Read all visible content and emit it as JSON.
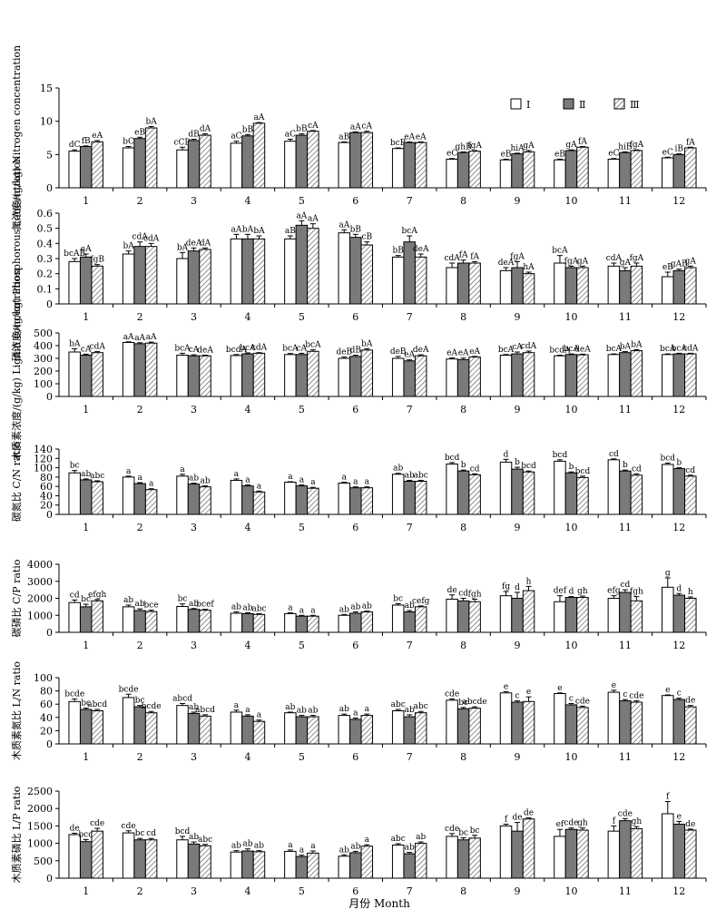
{
  "legend": [
    "Ⅰ",
    "Ⅱ",
    "Ⅲ"
  ],
  "x_label": "月份  Month",
  "categories": [
    "1",
    "2",
    "3",
    "4",
    "5",
    "6",
    "7",
    "8",
    "9",
    "10",
    "11",
    "12"
  ],
  "chart_data": [
    {
      "type": "bar",
      "ylabel": "氮浓度/(g/kg) Nitrogen concentration",
      "ylim": [
        0,
        15
      ],
      "yticks": [
        0,
        5,
        10,
        15
      ],
      "series": [
        {
          "name": "Ⅰ",
          "values": [
            5.5,
            6.0,
            5.7,
            6.7,
            7.0,
            6.8,
            5.9,
            4.3,
            4.2,
            4.2,
            4.3,
            4.5
          ],
          "errors": [
            0.2,
            0.2,
            0.4,
            0.3,
            0.3,
            0.1,
            0.1,
            0.1,
            0.1,
            0.1,
            0.1,
            0.1
          ],
          "labels": [
            "dC",
            "bC",
            "cCD",
            "aC",
            "aC",
            "aB",
            "bcB",
            "eC",
            "eB",
            "eB",
            "eC",
            "eC"
          ]
        },
        {
          "name": "Ⅱ",
          "values": [
            6.2,
            7.4,
            7.1,
            7.8,
            7.9,
            8.3,
            6.8,
            5.3,
            5.1,
            5.6,
            5.3,
            5.0
          ],
          "errors": [
            0.1,
            0.2,
            0.2,
            0.2,
            0.2,
            0.1,
            0.1,
            0.1,
            0.1,
            0.1,
            0.1,
            0.1
          ],
          "labels": [
            "fB",
            "eB",
            "dB",
            "bB",
            "bB",
            "aA",
            "eA",
            "ghB",
            "hiA",
            "gA",
            "hiB",
            "iB"
          ]
        },
        {
          "name": "Ⅲ",
          "values": [
            6.9,
            9.0,
            7.9,
            9.7,
            8.5,
            8.3,
            6.8,
            5.5,
            5.4,
            6.1,
            5.6,
            6.0
          ],
          "errors": [
            0.2,
            0.2,
            0.2,
            0.1,
            0.1,
            0.2,
            0.1,
            0.1,
            0.2,
            0.1,
            0.1,
            0.1
          ],
          "labels": [
            "eA",
            "bA",
            "dA",
            "aA",
            "cA",
            "cA",
            "eA",
            "fgA",
            "gA",
            "fA",
            "fgA",
            "fA"
          ]
        }
      ]
    },
    {
      "type": "bar",
      "ylabel": "磷浓度/(g/kg) Phosphorous concentration",
      "ylim": [
        0,
        0.6
      ],
      "yticks": [
        0,
        0.1,
        0.2,
        0.3,
        0.4,
        0.5,
        0.6
      ],
      "series": [
        {
          "name": "Ⅰ",
          "values": [
            0.28,
            0.33,
            0.3,
            0.43,
            0.43,
            0.47,
            0.31,
            0.24,
            0.22,
            0.27,
            0.25,
            0.18
          ],
          "errors": [
            0.02,
            0.02,
            0.04,
            0.03,
            0.02,
            0.02,
            0.01,
            0.03,
            0.02,
            0.05,
            0.02,
            0.03
          ],
          "labels": [
            "bcAB",
            "bA",
            "bA",
            "aA",
            "aB",
            "aA",
            "bB",
            "cdA",
            "deA",
            "bcA",
            "cdA",
            "eB"
          ]
        },
        {
          "name": "Ⅱ",
          "values": [
            0.31,
            0.38,
            0.35,
            0.43,
            0.52,
            0.44,
            0.41,
            0.27,
            0.24,
            0.24,
            0.22,
            0.22
          ],
          "errors": [
            0.02,
            0.03,
            0.02,
            0.03,
            0.03,
            0.02,
            0.04,
            0.02,
            0.04,
            0.01,
            0.02,
            0.01
          ],
          "labels": [
            "eA",
            "cdA",
            "deA",
            "bA",
            "aA",
            "bB",
            "bcA",
            "fA",
            "fgA",
            "fgA",
            "gA",
            "gAB"
          ]
        },
        {
          "name": "Ⅲ",
          "values": [
            0.25,
            0.38,
            0.36,
            0.43,
            0.5,
            0.39,
            0.31,
            0.27,
            0.2,
            0.24,
            0.25,
            0.24
          ],
          "errors": [
            0.01,
            0.02,
            0.01,
            0.02,
            0.03,
            0.02,
            0.02,
            0.01,
            0.01,
            0.01,
            0.02,
            0.01
          ],
          "labels": [
            "fgB",
            "cdA",
            "dA",
            "bA",
            "aA",
            "cB",
            "deA",
            "fA",
            "hA",
            "gA",
            "fgA",
            "gA"
          ]
        }
      ]
    },
    {
      "type": "bar",
      "ylabel": "木质素浓度/(g/kg) Lignin concentration",
      "ylim": [
        0,
        500
      ],
      "yticks": [
        0,
        100,
        200,
        300,
        400,
        500
      ],
      "series": [
        {
          "name": "Ⅰ",
          "values": [
            350,
            425,
            325,
            322,
            330,
            300,
            300,
            295,
            325,
            320,
            330,
            330
          ],
          "errors": [
            25,
            5,
            15,
            8,
            8,
            10,
            15,
            8,
            5,
            5,
            5,
            5
          ],
          "labels": [
            "bA",
            "aA",
            "bcA",
            "bcdA",
            "bcA",
            "deB",
            "deB",
            "eA",
            "bcA",
            "bcdA",
            "bcA",
            "bcA"
          ]
        },
        {
          "name": "Ⅱ",
          "values": [
            325,
            415,
            320,
            335,
            330,
            315,
            280,
            290,
            335,
            330,
            345,
            335
          ],
          "errors": [
            8,
            8,
            8,
            8,
            10,
            10,
            8,
            12,
            15,
            5,
            8,
            5
          ],
          "labels": [
            "cA",
            "aA",
            "cA",
            "bcA",
            "cA",
            "dB",
            "eA",
            "eA",
            "cA",
            "bcA",
            "bA",
            "bcA"
          ]
        },
        {
          "name": "Ⅲ",
          "values": [
            345,
            420,
            320,
            340,
            355,
            365,
            320,
            310,
            345,
            328,
            360,
            335
          ],
          "errors": [
            8,
            8,
            5,
            5,
            12,
            10,
            8,
            5,
            12,
            5,
            8,
            5
          ],
          "labels": [
            "cdA",
            "aA",
            "deA",
            "cdA",
            "bcA",
            "bA",
            "deA",
            "eA",
            "cdA",
            "deA",
            "bA",
            "cdA"
          ]
        }
      ]
    },
    {
      "type": "bar",
      "ylabel": "碳氮比 C/N ratio",
      "ylim": [
        0,
        140
      ],
      "yticks": [
        0,
        20,
        40,
        60,
        80,
        100,
        120,
        140
      ],
      "series": [
        {
          "name": "Ⅰ",
          "values": [
            89,
            80,
            82,
            73,
            69,
            67,
            86,
            108,
            112,
            114,
            117,
            107
          ],
          "errors": [
            5,
            2,
            4,
            3,
            1,
            2,
            2,
            3,
            6,
            3,
            2,
            3
          ],
          "labels": [
            "bc",
            "a",
            "a",
            "a",
            "a",
            "a",
            "ab",
            "bcd",
            "d",
            "bcd",
            "cd",
            "bcd"
          ]
        },
        {
          "name": "Ⅱ",
          "values": [
            74,
            66,
            65,
            61,
            61,
            57,
            71,
            93,
            97,
            89,
            93,
            98
          ],
          "errors": [
            2,
            2,
            2,
            2,
            2,
            2,
            2,
            2,
            4,
            2,
            2,
            2
          ],
          "labels": [
            "ab",
            "a",
            "ab",
            "a",
            "a",
            "a",
            "ab",
            "b",
            "b",
            "b",
            "b",
            "b"
          ]
        },
        {
          "name": "Ⅲ",
          "values": [
            70,
            53,
            59,
            48,
            56,
            57,
            71,
            85,
            91,
            79,
            84,
            82
          ],
          "errors": [
            2,
            2,
            2,
            2,
            2,
            2,
            2,
            2,
            2,
            3,
            3,
            2
          ],
          "labels": [
            "abc",
            "a",
            "ab",
            "a",
            "a",
            "a",
            "abc",
            "cd",
            "bcd",
            "bcd",
            "cd",
            "cd"
          ]
        }
      ]
    },
    {
      "type": "bar",
      "ylabel": "碳磷比 C/P ratio",
      "ylim": [
        0,
        4000
      ],
      "yticks": [
        0,
        1000,
        2000,
        3000,
        4000
      ],
      "series": [
        {
          "name": "Ⅰ",
          "values": [
            1750,
            1500,
            1520,
            1120,
            1100,
            1000,
            1600,
            1950,
            2150,
            1800,
            2000,
            2650
          ],
          "errors": [
            150,
            100,
            150,
            80,
            50,
            50,
            80,
            250,
            250,
            350,
            150,
            550
          ],
          "labels": [
            "cd",
            "ab",
            "bc",
            "ab",
            "a",
            "ab",
            "bc",
            "de",
            "fg",
            "def",
            "efg",
            "g"
          ]
        },
        {
          "name": "Ⅱ",
          "values": [
            1500,
            1280,
            1350,
            1100,
            950,
            1120,
            1200,
            1850,
            2000,
            2050,
            2350,
            2180
          ],
          "errors": [
            150,
            100,
            50,
            50,
            50,
            80,
            80,
            150,
            350,
            50,
            150,
            100
          ],
          "labels": [
            "bc",
            "ab",
            "ab",
            "ab",
            "a",
            "ab",
            "ab",
            "cd",
            "d",
            "d",
            "cd",
            "d"
          ]
        },
        {
          "name": "Ⅲ",
          "values": [
            1850,
            1220,
            1300,
            1050,
            950,
            1200,
            1500,
            1800,
            2450,
            2050,
            1850,
            2000
          ],
          "errors": [
            80,
            80,
            50,
            50,
            50,
            50,
            50,
            150,
            250,
            80,
            250,
            80
          ],
          "labels": [
            "efgh",
            "bce",
            "bcef",
            "abc",
            "a",
            "ab",
            "cefg",
            "fgh",
            "h",
            "gh",
            "fgh",
            "h"
          ]
        }
      ]
    },
    {
      "type": "bar",
      "ylabel": "木质素氮比 L/N ratio",
      "ylim": [
        0,
        100
      ],
      "yticks": [
        0,
        20,
        40,
        60,
        80,
        100
      ],
      "series": [
        {
          "name": "Ⅰ",
          "values": [
            64,
            70,
            58,
            48,
            47,
            43,
            50,
            66,
            77,
            76,
            78,
            73
          ],
          "errors": [
            4,
            5,
            3,
            3,
            1,
            2,
            2,
            2,
            2,
            1,
            3,
            1
          ],
          "labels": [
            "bcde",
            "bcde",
            "abcd",
            "a",
            "ab",
            "ab",
            "abc",
            "cde",
            "e",
            "e",
            "e",
            "e"
          ]
        },
        {
          "name": "Ⅱ",
          "values": [
            52,
            56,
            46,
            42,
            41,
            37,
            41,
            53,
            63,
            59,
            65,
            67
          ],
          "errors": [
            2,
            2,
            2,
            2,
            2,
            2,
            3,
            2,
            2,
            2,
            2,
            2
          ],
          "labels": [
            "bc",
            "bc",
            "ab",
            "a",
            "ab",
            "a",
            "ab",
            "bc",
            "c",
            "c",
            "c",
            "c"
          ]
        },
        {
          "name": "Ⅲ",
          "values": [
            50,
            47,
            42,
            34,
            41,
            43,
            47,
            54,
            64,
            55,
            63,
            56
          ],
          "errors": [
            2,
            2,
            2,
            2,
            2,
            2,
            2,
            2,
            7,
            2,
            2,
            2
          ],
          "labels": [
            "abcd",
            "bcde",
            "abcd",
            "a",
            "ab",
            "a",
            "abc",
            "abcde",
            "e",
            "cde",
            "cde",
            "de"
          ]
        }
      ]
    },
    {
      "type": "bar",
      "ylabel": "木质素磷比 L/P ratio",
      "ylim": [
        0,
        2500
      ],
      "yticks": [
        0,
        500,
        1000,
        1500,
        2000,
        2500
      ],
      "series": [
        {
          "name": "Ⅰ",
          "values": [
            1250,
            1300,
            1100,
            750,
            770,
            630,
            950,
            1200,
            1500,
            1200,
            1350,
            1850
          ],
          "errors": [
            40,
            60,
            100,
            40,
            40,
            40,
            40,
            80,
            50,
            200,
            150,
            350
          ],
          "labels": [
            "de",
            "cde",
            "bcd",
            "ab",
            "a",
            "ab",
            "abc",
            "cde",
            "f",
            "ef",
            "f",
            "f"
          ]
        },
        {
          "name": "Ⅱ",
          "values": [
            1050,
            1100,
            980,
            780,
            620,
            730,
            700,
            1100,
            1350,
            1400,
            1650,
            1550
          ],
          "errors": [
            60,
            40,
            60,
            60,
            40,
            40,
            40,
            60,
            250,
            40,
            60,
            80
          ],
          "labels": [
            "bcd",
            "bc",
            "ab",
            "ab",
            "a",
            "ab",
            "ab",
            "bc",
            "de",
            "cde",
            "cde",
            "e"
          ]
        },
        {
          "name": "Ⅲ",
          "values": [
            1350,
            1100,
            930,
            760,
            720,
            920,
            1000,
            1150,
            1700,
            1380,
            1420,
            1380
          ],
          "errors": [
            80,
            40,
            40,
            30,
            60,
            40,
            40,
            80,
            30,
            60,
            60,
            30
          ],
          "labels": [
            "cde",
            "cd",
            "abc",
            "ab",
            "a",
            "a",
            "ab",
            "bc",
            "de",
            "gh",
            "gh",
            "de"
          ]
        }
      ]
    }
  ]
}
